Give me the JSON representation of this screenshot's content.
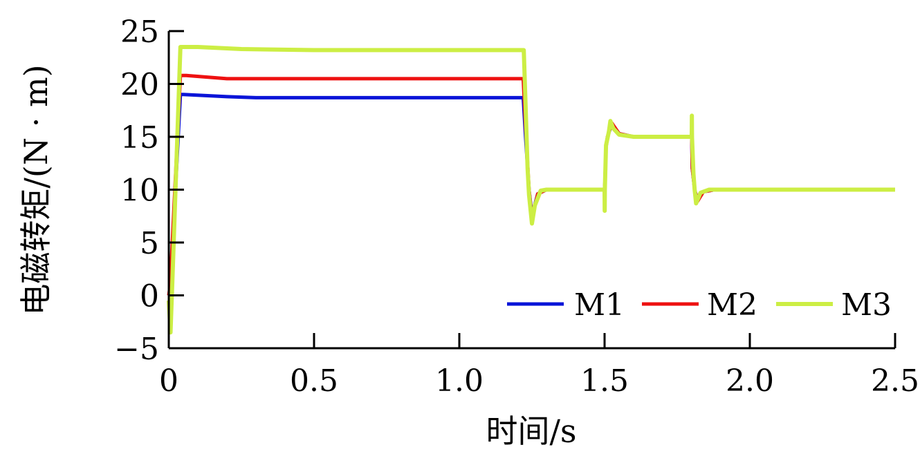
{
  "chart_data": {
    "type": "line",
    "xlabel": "时间/s",
    "ylabel": "电磁转矩/(N · m)",
    "xlim": [
      0,
      2.5
    ],
    "ylim": [
      -5,
      25
    ],
    "x_ticks": [
      "0",
      "0.5",
      "1.0",
      "1.5",
      "2.0",
      "2.5"
    ],
    "x_tick_values": [
      0,
      0.5,
      1.0,
      1.5,
      2.0,
      2.5
    ],
    "y_ticks": [
      "25",
      "20",
      "15",
      "10",
      "5",
      "0",
      "−5"
    ],
    "y_tick_values": [
      25,
      20,
      15,
      10,
      5,
      0,
      -5
    ],
    "grid": false,
    "legend_position": "bottom-right",
    "series": [
      {
        "name": "M1",
        "color": "#0a14d8",
        "x": [
          0,
          0.005,
          0.04,
          0.05,
          0.2,
          0.3,
          1.0,
          1.22,
          1.228,
          1.24,
          1.25,
          1.27,
          1.3,
          1.5,
          1.501,
          1.505,
          1.51,
          1.525,
          1.55,
          1.6,
          1.8,
          1.802,
          1.81,
          1.82,
          1.84,
          1.88,
          2.0,
          2.5
        ],
        "y": [
          0,
          0.5,
          19.0,
          19.0,
          18.8,
          18.7,
          18.7,
          18.7,
          15.0,
          10.0,
          7.6,
          9.6,
          10.0,
          10.0,
          10.5,
          14.0,
          15.0,
          16.2,
          15.3,
          15.0,
          15.0,
          12.0,
          10.0,
          9.0,
          9.8,
          10.0,
          10.0,
          10.0
        ]
      },
      {
        "name": "M2",
        "color": "#ee1111",
        "x": [
          0,
          0.005,
          0.04,
          0.06,
          0.2,
          0.3,
          1.0,
          1.22,
          1.228,
          1.24,
          1.25,
          1.27,
          1.3,
          1.5,
          1.501,
          1.505,
          1.51,
          1.525,
          1.55,
          1.6,
          1.8,
          1.802,
          1.81,
          1.82,
          1.84,
          1.88,
          2.0,
          2.5
        ],
        "y": [
          0,
          1.0,
          20.8,
          20.8,
          20.5,
          20.5,
          20.5,
          20.5,
          16.0,
          10.0,
          7.3,
          9.6,
          10.0,
          10.0,
          10.5,
          14.0,
          15.0,
          16.3,
          15.3,
          15.0,
          15.0,
          12.0,
          10.0,
          8.9,
          9.8,
          10.0,
          10.0,
          10.0
        ]
      },
      {
        "name": "M3",
        "color": "#ccee44",
        "x": [
          0,
          0.006,
          0.012,
          0.04,
          0.1,
          0.25,
          0.5,
          1.0,
          1.222,
          1.228,
          1.235,
          1.24,
          1.25,
          1.26,
          1.28,
          1.3,
          1.5,
          1.5005,
          1.501,
          1.505,
          1.515,
          1.52,
          1.53,
          1.55,
          1.6,
          1.8,
          1.8005,
          1.801,
          1.806,
          1.81,
          1.815,
          1.83,
          1.86,
          1.9,
          2.0,
          2.5
        ],
        "y": [
          -0.5,
          -3.5,
          1.0,
          23.5,
          23.5,
          23.3,
          23.2,
          23.2,
          23.2,
          18.0,
          12.0,
          9.5,
          6.8,
          8.5,
          9.9,
          10.0,
          10.0,
          8.0,
          10.0,
          14.2,
          15.5,
          16.5,
          15.8,
          15.2,
          15.0,
          15.0,
          17.0,
          15.0,
          11.5,
          10.0,
          8.7,
          9.7,
          10.0,
          10.0,
          10.0,
          10.0
        ]
      }
    ]
  }
}
